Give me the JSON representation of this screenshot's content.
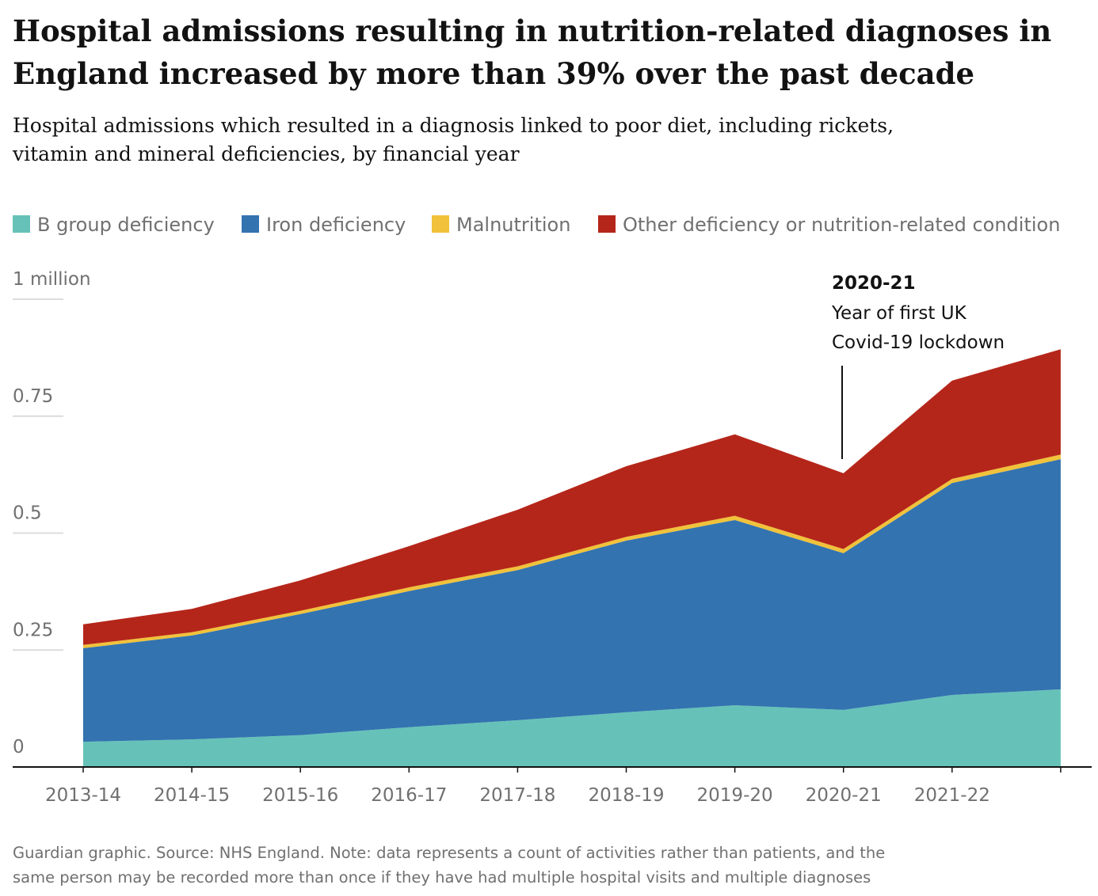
{
  "chart_data": {
    "type": "stacked-area",
    "title": [
      "Hospital admissions resulting in nutrition-related diagnoses in",
      "England increased by more than 39% over the past decade"
    ],
    "subtitle": [
      "Hospital admissions which resulted in a diagnosis linked to poor diet, including rickets,",
      "vitamin and mineral deficiencies, by financial year"
    ],
    "categories": [
      "2013-14",
      "2014-15",
      "2015-16",
      "2016-17",
      "2017-18",
      "2018-19",
      "2019-20",
      "2020-21",
      "2021-22",
      null
    ],
    "series": [
      {
        "name": "B group deficiency",
        "color": "#66c2b8",
        "values": [
          0.054,
          0.059,
          0.068,
          0.085,
          0.1,
          0.117,
          0.132,
          0.122,
          0.154,
          0.166
        ]
      },
      {
        "name": "Iron deficiency",
        "color": "#3373b0",
        "values": [
          0.2,
          0.222,
          0.259,
          0.291,
          0.321,
          0.367,
          0.396,
          0.335,
          0.453,
          0.492
        ]
      },
      {
        "name": "Malnutrition",
        "color": "#f0c23b",
        "values": [
          0.007,
          0.007,
          0.007,
          0.008,
          0.008,
          0.008,
          0.009,
          0.009,
          0.009,
          0.01
        ]
      },
      {
        "name": "Other deficiency or nutrition-related condition",
        "color": "#b5261a",
        "values": [
          0.044,
          0.05,
          0.065,
          0.088,
          0.121,
          0.151,
          0.174,
          0.162,
          0.21,
          0.225
        ]
      }
    ],
    "ylim": [
      0,
      1
    ],
    "yticks": [
      0,
      0.25,
      0.5,
      0.75,
      {
        "value": 1,
        "label": "1 million"
      }
    ],
    "grid": true,
    "annotation": {
      "label": "2020-21",
      "text": [
        "Year of first UK",
        "Covid-19 lockdown"
      ]
    },
    "source": [
      "Guardian graphic. Source: NHS England. Note: data represents a count of activities rather than patients, and the",
      "same person may be recorded more than once if they have had multiple hospital visits and multiple diagnoses"
    ]
  }
}
